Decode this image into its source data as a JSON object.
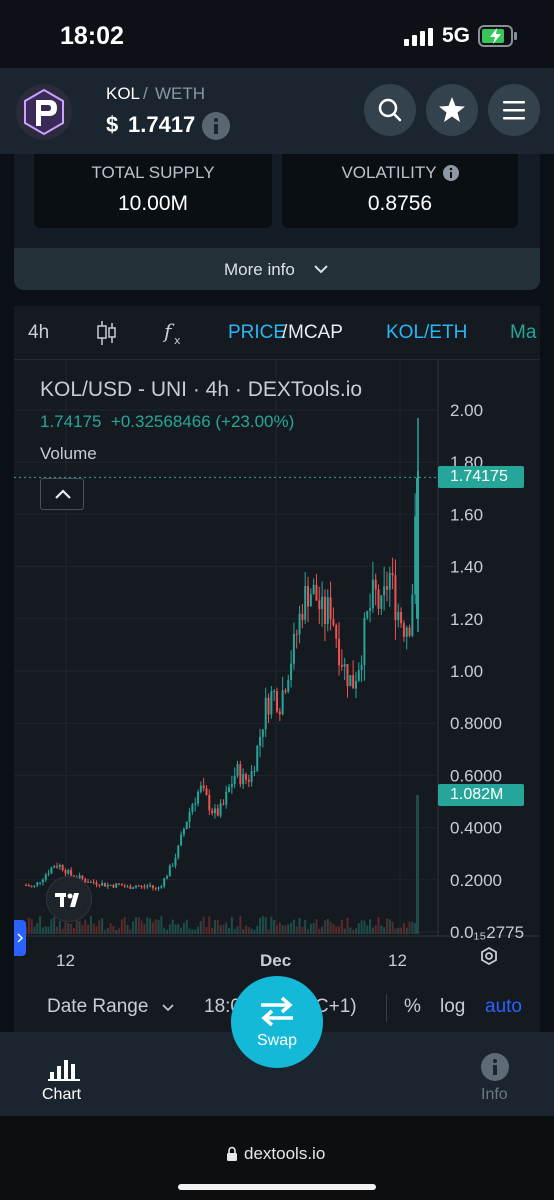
{
  "status_bar": {
    "time": "18:02",
    "network": "5G"
  },
  "header": {
    "pair_base": "KOL",
    "pair_sep": "/",
    "pair_quote": "WETH",
    "price_currency": "$",
    "price_value": "1.7417",
    "icons": [
      "search-icon",
      "star-icon",
      "menu-icon"
    ]
  },
  "stats": [
    {
      "label": "TOTAL SUPPLY",
      "value": "10.00M"
    },
    {
      "label": "VOLATILITY",
      "value": "0.8756"
    }
  ],
  "more_info": {
    "label": "More info"
  },
  "chart_toolbar": {
    "interval": "4h",
    "price": "PRICE",
    "slash": "/",
    "mcap": "MCAP",
    "pair": "KOL/ETH",
    "more": "Ma"
  },
  "chart_legend": {
    "title": "KOL/USD - UNI · 4h · DEXTools.io",
    "last": "1.74175",
    "change": "+0.32568466 (+23.00%)",
    "volume": "Volume"
  },
  "chart_data": {
    "type": "candlestick",
    "title": "KOL/USD - UNI · 4h · DEXTools.io",
    "y_ticks": [
      "2.00",
      "1.80",
      "1.60",
      "1.40",
      "1.20",
      "1.00",
      "0.8000",
      "0.6000",
      "0.4000",
      "0.2000",
      "0.0₁₅2775"
    ],
    "y_tick_values": [
      2.0,
      1.8,
      1.6,
      1.4,
      1.2,
      1.0,
      0.8,
      0.6,
      0.4,
      0.2,
      0.0
    ],
    "x_ticks": [
      "12",
      "Dec",
      "12"
    ],
    "ylim": [
      0,
      2.05
    ],
    "last_price": 1.74175,
    "last_price_label": "1.74175",
    "volume_label": "1.082M",
    "close_path": [
      0.18,
      0.17,
      0.2,
      0.23,
      0.26,
      0.25,
      0.22,
      0.21,
      0.2,
      0.19,
      0.19,
      0.18,
      0.18,
      0.18,
      0.17,
      0.18,
      0.17,
      0.18,
      0.16,
      0.2,
      0.25,
      0.32,
      0.42,
      0.5,
      0.55,
      0.5,
      0.45,
      0.47,
      0.55,
      0.62,
      0.58,
      0.6,
      0.72,
      0.86,
      0.92,
      0.88,
      1.0,
      1.1,
      1.25,
      1.32,
      1.28,
      1.2,
      1.25,
      1.1,
      1.0,
      0.95,
      1.05,
      1.2,
      1.3,
      1.22,
      1.38,
      1.25,
      1.18,
      1.2,
      1.74
    ]
  },
  "chart_bottom": {
    "date_range": "Date Range",
    "time": "18:02:24 (UTC+1)",
    "percent": "%",
    "log": "log",
    "auto": "auto"
  },
  "bottom_nav": {
    "chart": "Chart",
    "swap": "Swap",
    "info": "Info"
  },
  "url": "dextools.io",
  "colors": {
    "up": "#26a69a",
    "down": "#ef5350",
    "accent": "#13b9d6"
  }
}
